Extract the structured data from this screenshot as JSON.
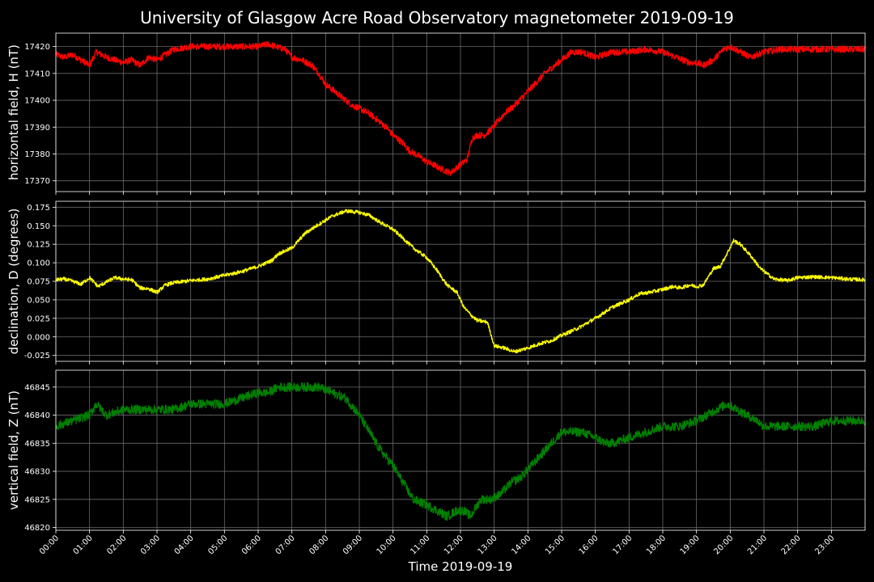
{
  "chart_data": {
    "type": "line",
    "title": "University of Glasgow Acre Road Observatory magnetometer 2019-09-19",
    "xlabel": "Time 2019-09-19",
    "x_ticks": [
      "00:00",
      "01:00",
      "02:00",
      "03:00",
      "04:00",
      "05:00",
      "06:00",
      "07:00",
      "08:00",
      "09:00",
      "10:00",
      "11:00",
      "12:00",
      "13:00",
      "14:00",
      "15:00",
      "16:00",
      "17:00",
      "18:00",
      "19:00",
      "20:00",
      "21:00",
      "22:00",
      "23:00"
    ],
    "xlim_hours": [
      0,
      24
    ],
    "grid": true,
    "panels": [
      {
        "ylabel": "horizontal field, H (nT)",
        "color": "#ff0000",
        "ylim": [
          17366,
          17425
        ],
        "y_ticks": [
          17370,
          17380,
          17390,
          17400,
          17410,
          17420
        ],
        "noise": 1.2,
        "x": [
          0,
          0.25,
          0.5,
          0.75,
          1,
          1.2,
          1.5,
          1.75,
          2,
          2.25,
          2.5,
          2.75,
          3,
          3.25,
          3.5,
          4,
          4.5,
          5,
          5.5,
          6,
          6.3,
          6.5,
          6.8,
          7,
          7.3,
          7.6,
          7.8,
          8,
          8.3,
          8.5,
          8.8,
          9,
          9.3,
          9.5,
          9.8,
          10,
          10.3,
          10.5,
          10.8,
          11,
          11.2,
          11.5,
          11.7,
          11.9,
          12.1,
          12.2,
          12.35,
          12.5,
          12.7,
          12.9,
          13.1,
          13.3,
          13.6,
          13.9,
          14.2,
          14.5,
          14.8,
          15,
          15.3,
          15.6,
          16,
          16.5,
          17,
          17.5,
          18,
          18.4,
          18.8,
          19,
          19.2,
          19.5,
          19.8,
          20,
          20.3,
          20.6,
          21,
          21.5,
          22,
          22.5,
          23,
          23.5,
          24
        ],
        "y": [
          17417,
          17416,
          17417,
          17415,
          17413,
          17418,
          17416,
          17415,
          17414,
          17415,
          17413,
          17416,
          17415,
          17417,
          17419,
          17420,
          17420,
          17420,
          17420,
          17420,
          17421,
          17420,
          17419,
          17416,
          17415,
          17413,
          17410,
          17406,
          17403,
          17401,
          17398,
          17397,
          17395,
          17393,
          17390,
          17387,
          17384,
          17381,
          17379,
          17377,
          17376,
          17374,
          17373,
          17375,
          17377,
          17378,
          17386,
          17387,
          17387,
          17389,
          17392,
          17395,
          17398,
          17402,
          17406,
          17410,
          17413,
          17415,
          17418,
          17418,
          17416,
          17418,
          17418,
          17419,
          17418,
          17416,
          17414,
          17414,
          17413,
          17415,
          17419,
          17420,
          17418,
          17416,
          17418,
          17419,
          17419,
          17419,
          17419,
          17419,
          17419
        ]
      },
      {
        "ylabel": "declination, D (degrees)",
        "color": "#ffff00",
        "ylim": [
          -0.033,
          0.183
        ],
        "y_ticks": [
          -0.025,
          0.0,
          0.025,
          0.05,
          0.075,
          0.1,
          0.125,
          0.15,
          0.175
        ],
        "noise": 0.0025,
        "x": [
          0,
          0.25,
          0.5,
          0.75,
          1,
          1.25,
          1.5,
          1.75,
          2,
          2.25,
          2.5,
          2.75,
          3,
          3.25,
          3.5,
          4,
          4.5,
          5,
          5.5,
          6,
          6.4,
          6.6,
          7,
          7.4,
          7.8,
          8.2,
          8.6,
          9,
          9.3,
          9.6,
          10,
          10.3,
          10.6,
          11,
          11.3,
          11.6,
          11.9,
          12.1,
          12.3,
          12.5,
          12.8,
          13,
          13.3,
          13.6,
          14,
          14.3,
          14.7,
          15,
          15.5,
          16,
          16.5,
          17,
          17.3,
          17.6,
          18,
          18.3,
          18.5,
          18.8,
          19,
          19.2,
          19.5,
          19.7,
          19.9,
          20.1,
          20.3,
          20.6,
          20.9,
          21.3,
          21.7,
          22,
          22.5,
          23,
          23.5,
          24
        ],
        "y": [
          0.077,
          0.078,
          0.075,
          0.071,
          0.08,
          0.068,
          0.074,
          0.08,
          0.078,
          0.077,
          0.066,
          0.065,
          0.06,
          0.07,
          0.073,
          0.076,
          0.078,
          0.083,
          0.088,
          0.095,
          0.103,
          0.112,
          0.12,
          0.14,
          0.152,
          0.163,
          0.17,
          0.168,
          0.164,
          0.155,
          0.145,
          0.133,
          0.12,
          0.107,
          0.09,
          0.07,
          0.06,
          0.04,
          0.03,
          0.022,
          0.02,
          -0.012,
          -0.015,
          -0.02,
          -0.015,
          -0.01,
          -0.005,
          0.002,
          0.012,
          0.025,
          0.04,
          0.05,
          0.058,
          0.06,
          0.064,
          0.068,
          0.066,
          0.07,
          0.068,
          0.07,
          0.092,
          0.095,
          0.112,
          0.13,
          0.125,
          0.11,
          0.092,
          0.078,
          0.076,
          0.08,
          0.081,
          0.08,
          0.078,
          0.077
        ]
      },
      {
        "ylabel": "vertical field, Z (nT)",
        "color": "#008000",
        "ylim": [
          46819.5,
          46848
        ],
        "y_ticks": [
          46820,
          46825,
          46830,
          46835,
          46840,
          46845
        ],
        "noise": 0.8,
        "x": [
          0,
          0.5,
          1,
          1.2,
          1.5,
          2,
          2.5,
          3,
          3.5,
          4,
          4.5,
          5,
          5.5,
          6,
          6.3,
          6.6,
          7,
          7.4,
          7.8,
          8.2,
          8.6,
          9,
          9.3,
          9.6,
          10,
          10.3,
          10.6,
          11,
          11.3,
          11.6,
          11.9,
          12.1,
          12.3,
          12.6,
          12.9,
          13.2,
          13.5,
          13.8,
          14.1,
          14.4,
          14.7,
          15,
          15.3,
          15.6,
          16,
          16.3,
          16.5,
          17,
          17.5,
          18,
          18.5,
          19,
          19.3,
          19.6,
          19.9,
          20.2,
          20.5,
          20.8,
          21,
          21.5,
          22,
          22.5,
          23,
          23.5,
          24
        ],
        "y": [
          46838,
          46839,
          46840,
          46842,
          46840,
          46841,
          46841,
          46841,
          46841,
          46842,
          46842,
          46842,
          46843,
          46844,
          46844,
          46845,
          46845,
          46845,
          46845,
          46844,
          46843,
          46840,
          46837,
          46834,
          46831,
          46828,
          46825,
          46824,
          46823,
          46822,
          46823,
          46823,
          46822,
          46825,
          46825,
          46826,
          46828,
          46829,
          46831,
          46833,
          46835,
          46837,
          46837,
          46837,
          46836,
          46835,
          46835,
          46836,
          46837,
          46838,
          46838,
          46839,
          46840,
          46841,
          46842,
          46841,
          46840,
          46839,
          46838,
          46838,
          46838,
          46838,
          46839,
          46839,
          46839
        ]
      }
    ]
  }
}
